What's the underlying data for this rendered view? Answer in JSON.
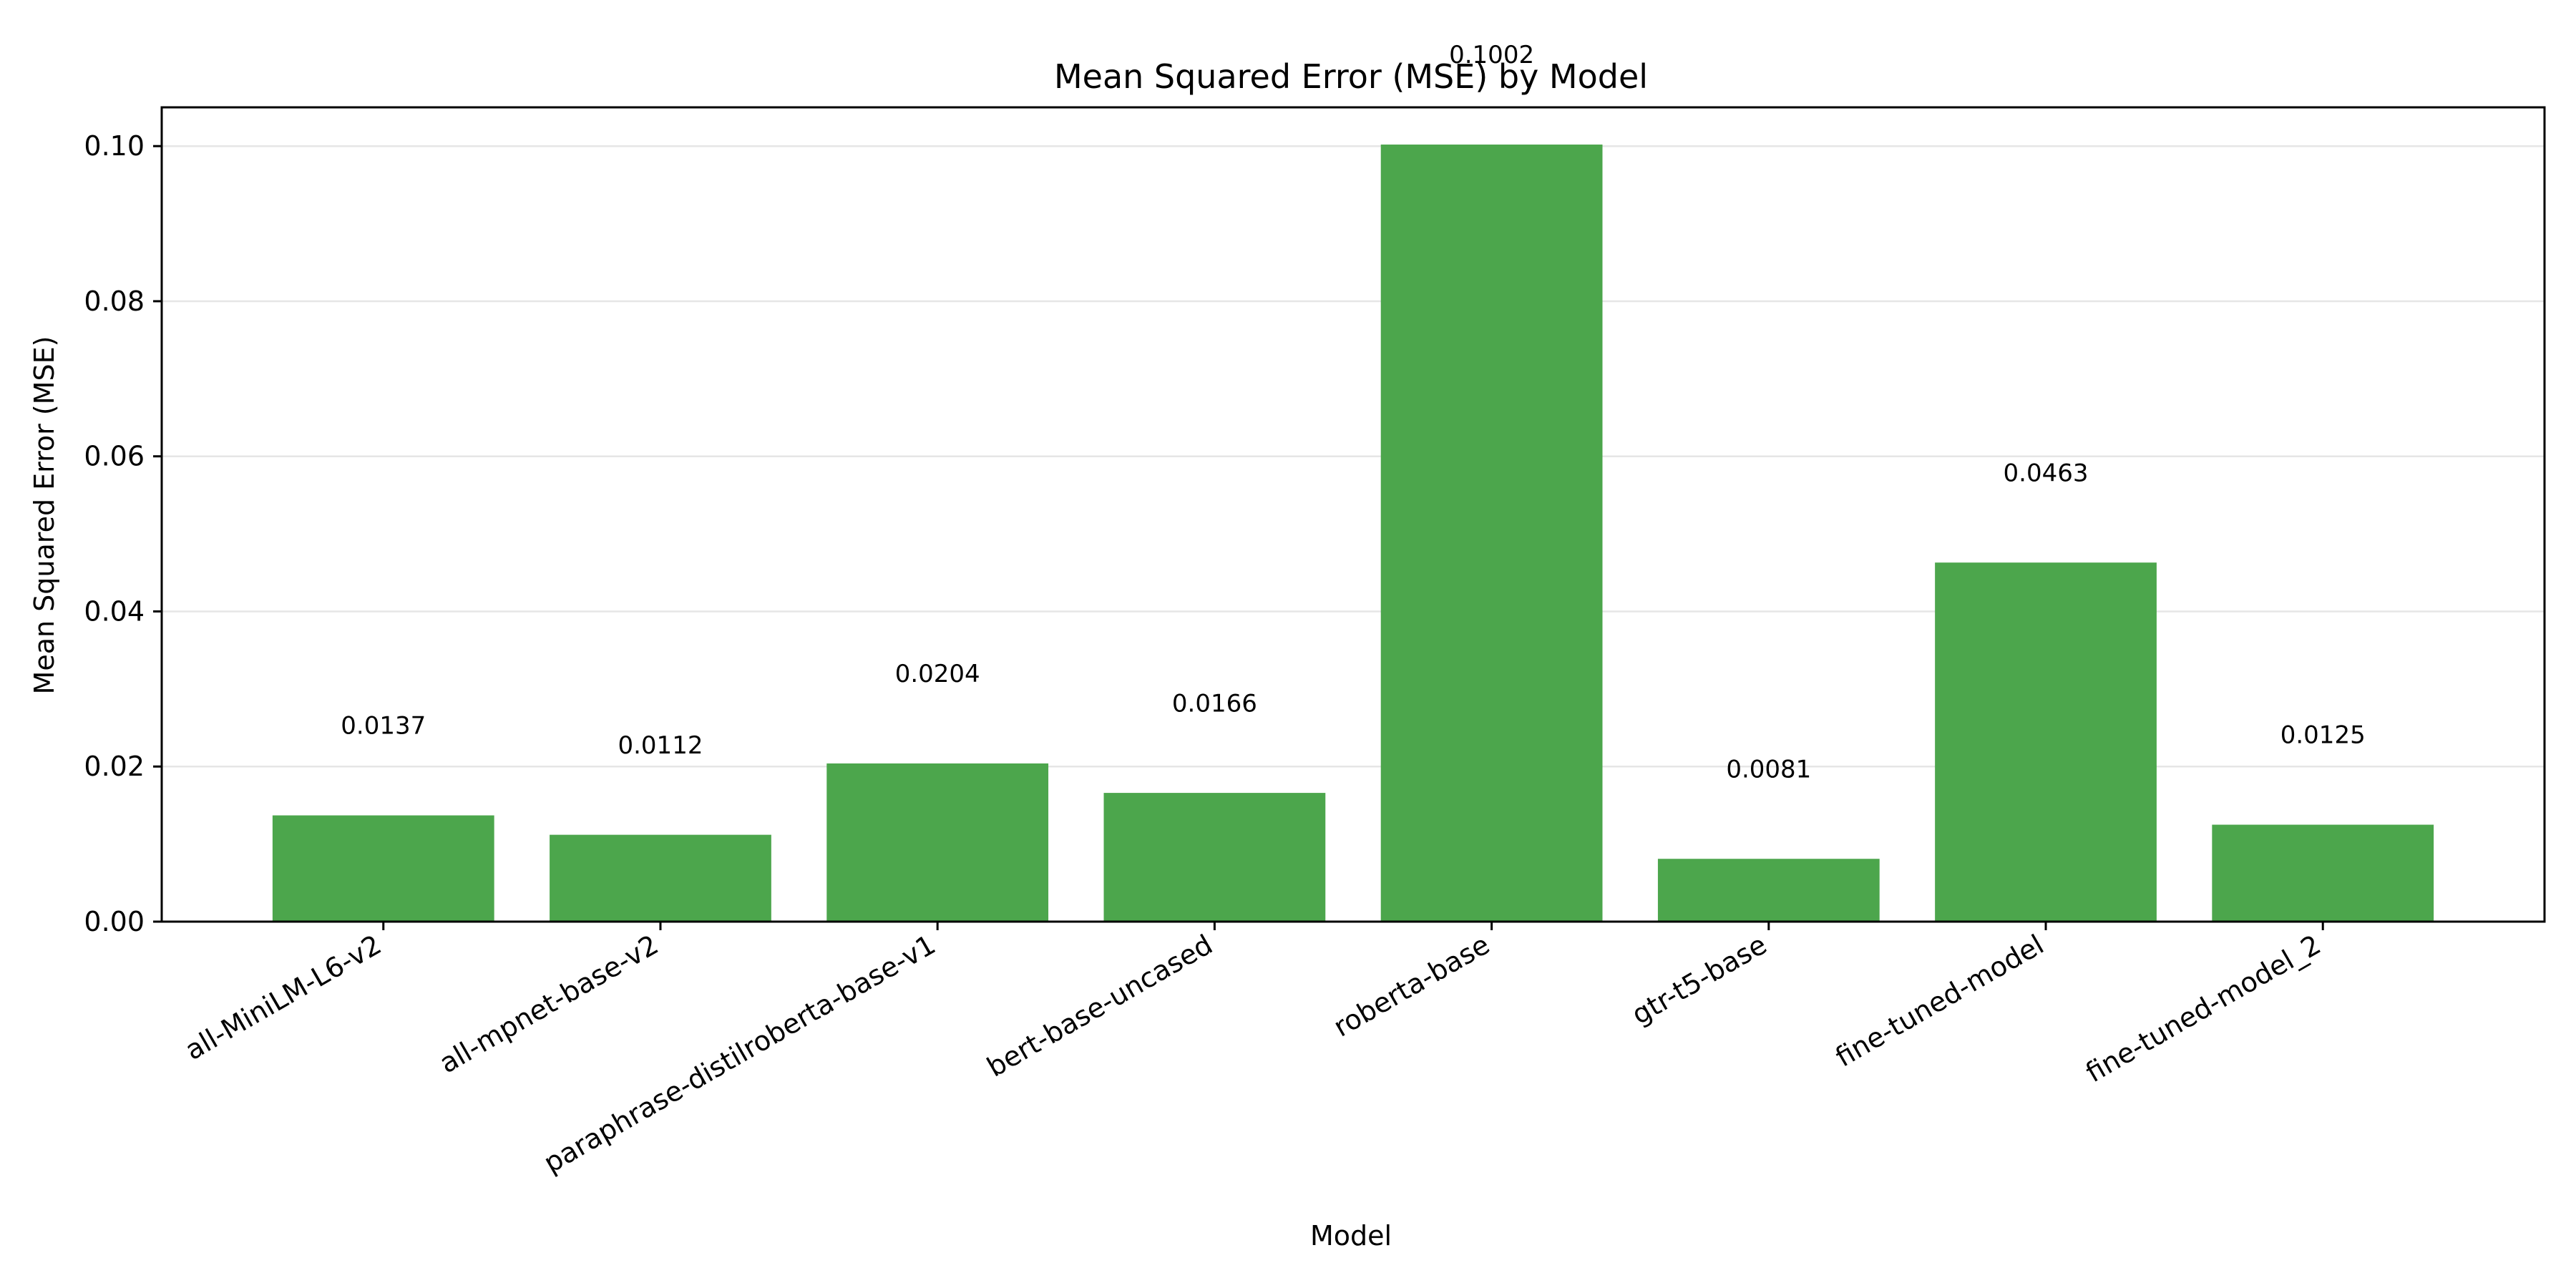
{
  "chart_data": {
    "type": "bar",
    "title": "Mean Squared Error (MSE) by Model",
    "xlabel": "Model",
    "ylabel": "Mean Squared Error (MSE)",
    "categories": [
      "all-MiniLM-L6-v2",
      "all-mpnet-base-v2",
      "paraphrase-distilroberta-base-v1",
      "bert-base-uncased",
      "roberta-base",
      "gtr-t5-base",
      "fine-tuned-model",
      "fine-tuned-model_2"
    ],
    "values": [
      0.0137,
      0.0112,
      0.0204,
      0.0166,
      0.1002,
      0.0081,
      0.0463,
      0.0125
    ],
    "data_labels": [
      "0.0137",
      "0.0112",
      "0.0204",
      "0.0166",
      "0.1002",
      "0.0081",
      "0.0463",
      "0.0125"
    ],
    "ylim": [
      0,
      0.105
    ],
    "yticks": [
      0,
      0.02,
      0.04,
      0.06,
      0.08,
      0.1
    ],
    "ytick_labels": [
      "0.00",
      "0.02",
      "0.04",
      "0.06",
      "0.08",
      "0.10"
    ],
    "grid": "horizontal",
    "bar_color": "#4ca64c",
    "grid_color": "#e6e6e6"
  }
}
